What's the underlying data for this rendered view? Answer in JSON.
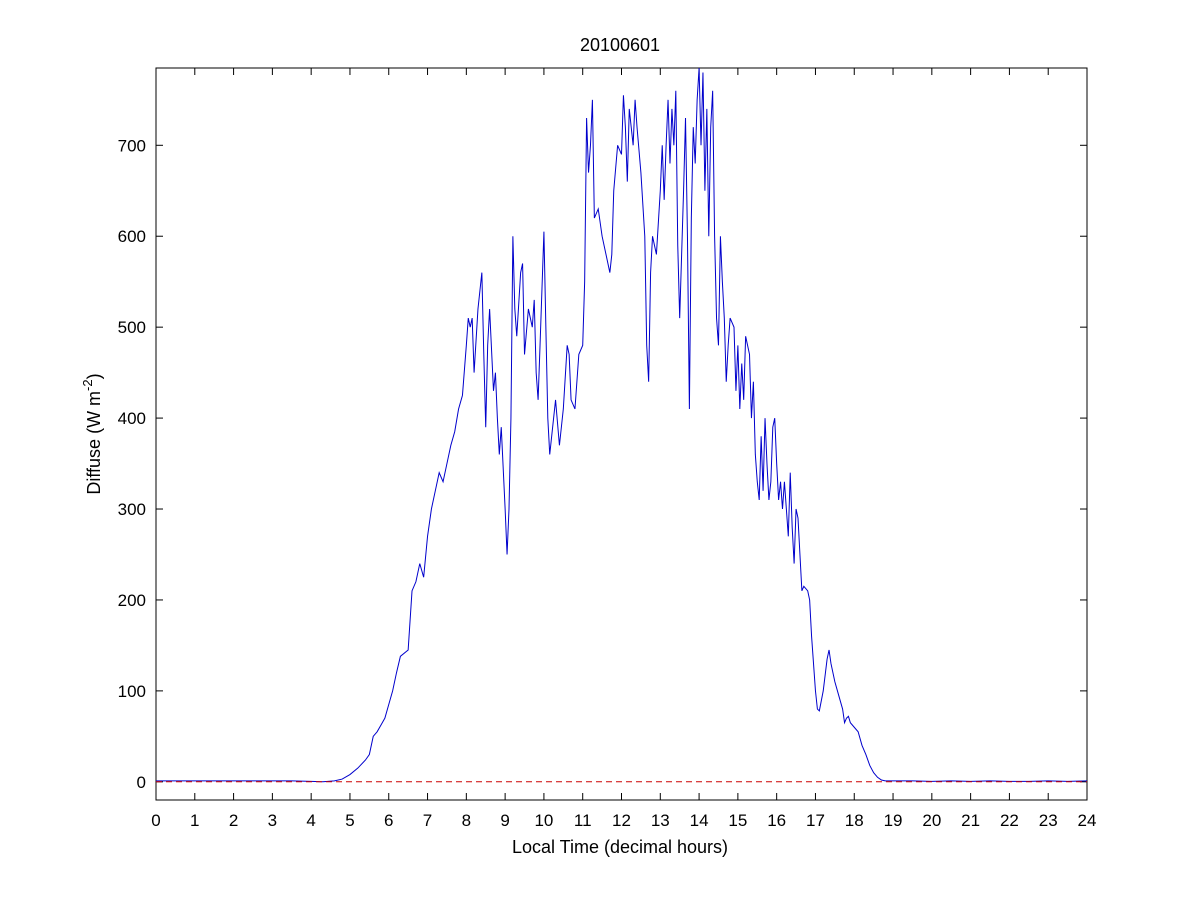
{
  "chart_data": {
    "type": "line",
    "title": "20100601",
    "xlabel": "Local Time (decimal hours)",
    "ylabel": {
      "prefix": "Diffuse (W m",
      "superscript": "-2",
      "suffix": ")"
    },
    "xlim": [
      0,
      24
    ],
    "ylim": [
      -20,
      785
    ],
    "xticks": [
      0,
      1,
      2,
      3,
      4,
      5,
      6,
      7,
      8,
      9,
      10,
      11,
      12,
      13,
      14,
      15,
      16,
      17,
      18,
      19,
      20,
      21,
      22,
      23,
      24
    ],
    "yticks": [
      0,
      100,
      200,
      300,
      400,
      500,
      600,
      700
    ],
    "grid": false,
    "legend": "none",
    "series": [
      {
        "color": "#0000cc",
        "line_style": "solid",
        "points": [
          [
            0,
            1
          ],
          [
            0.5,
            1
          ],
          [
            1,
            1
          ],
          [
            1.5,
            1
          ],
          [
            2,
            1
          ],
          [
            2.5,
            1
          ],
          [
            3,
            1
          ],
          [
            3.5,
            1
          ],
          [
            4,
            0.5
          ],
          [
            4.3,
            0
          ],
          [
            4.6,
            1
          ],
          [
            4.8,
            3
          ],
          [
            5.0,
            8
          ],
          [
            5.2,
            15
          ],
          [
            5.4,
            24
          ],
          [
            5.5,
            30
          ],
          [
            5.6,
            50
          ],
          [
            5.7,
            55
          ],
          [
            5.9,
            70
          ],
          [
            6.0,
            85
          ],
          [
            6.1,
            100
          ],
          [
            6.2,
            120
          ],
          [
            6.3,
            138
          ],
          [
            6.5,
            145
          ],
          [
            6.6,
            210
          ],
          [
            6.7,
            220
          ],
          [
            6.8,
            240
          ],
          [
            6.9,
            225
          ],
          [
            7.0,
            270
          ],
          [
            7.1,
            300
          ],
          [
            7.2,
            320
          ],
          [
            7.3,
            340
          ],
          [
            7.4,
            330
          ],
          [
            7.5,
            350
          ],
          [
            7.6,
            370
          ],
          [
            7.7,
            385
          ],
          [
            7.8,
            410
          ],
          [
            7.9,
            425
          ],
          [
            8.0,
            480
          ],
          [
            8.05,
            510
          ],
          [
            8.1,
            500
          ],
          [
            8.15,
            510
          ],
          [
            8.2,
            450
          ],
          [
            8.3,
            520
          ],
          [
            8.4,
            560
          ],
          [
            8.45,
            470
          ],
          [
            8.5,
            390
          ],
          [
            8.55,
            480
          ],
          [
            8.6,
            520
          ],
          [
            8.7,
            430
          ],
          [
            8.75,
            450
          ],
          [
            8.8,
            400
          ],
          [
            8.85,
            360
          ],
          [
            8.9,
            390
          ],
          [
            9.0,
            300
          ],
          [
            9.05,
            250
          ],
          [
            9.1,
            300
          ],
          [
            9.15,
            400
          ],
          [
            9.2,
            600
          ],
          [
            9.25,
            520
          ],
          [
            9.3,
            490
          ],
          [
            9.4,
            560
          ],
          [
            9.45,
            570
          ],
          [
            9.5,
            470
          ],
          [
            9.6,
            520
          ],
          [
            9.7,
            500
          ],
          [
            9.75,
            530
          ],
          [
            9.8,
            450
          ],
          [
            9.85,
            420
          ],
          [
            9.9,
            480
          ],
          [
            10.0,
            605
          ],
          [
            10.05,
            500
          ],
          [
            10.1,
            400
          ],
          [
            10.15,
            360
          ],
          [
            10.2,
            380
          ],
          [
            10.3,
            420
          ],
          [
            10.4,
            370
          ],
          [
            10.5,
            410
          ],
          [
            10.6,
            480
          ],
          [
            10.65,
            470
          ],
          [
            10.7,
            420
          ],
          [
            10.8,
            410
          ],
          [
            10.9,
            470
          ],
          [
            11.0,
            480
          ],
          [
            11.05,
            550
          ],
          [
            11.1,
            730
          ],
          [
            11.15,
            670
          ],
          [
            11.2,
            700
          ],
          [
            11.25,
            750
          ],
          [
            11.3,
            620
          ],
          [
            11.4,
            630
          ],
          [
            11.5,
            600
          ],
          [
            11.6,
            580
          ],
          [
            11.7,
            560
          ],
          [
            11.75,
            580
          ],
          [
            11.8,
            650
          ],
          [
            11.9,
            700
          ],
          [
            12.0,
            690
          ],
          [
            12.05,
            755
          ],
          [
            12.1,
            720
          ],
          [
            12.15,
            660
          ],
          [
            12.2,
            740
          ],
          [
            12.3,
            700
          ],
          [
            12.35,
            750
          ],
          [
            12.4,
            720
          ],
          [
            12.5,
            670
          ],
          [
            12.6,
            600
          ],
          [
            12.65,
            480
          ],
          [
            12.7,
            440
          ],
          [
            12.75,
            560
          ],
          [
            12.8,
            600
          ],
          [
            12.9,
            580
          ],
          [
            13.0,
            650
          ],
          [
            13.05,
            700
          ],
          [
            13.1,
            640
          ],
          [
            13.15,
            700
          ],
          [
            13.2,
            750
          ],
          [
            13.25,
            680
          ],
          [
            13.3,
            740
          ],
          [
            13.35,
            700
          ],
          [
            13.4,
            760
          ],
          [
            13.45,
            590
          ],
          [
            13.5,
            510
          ],
          [
            13.6,
            650
          ],
          [
            13.65,
            730
          ],
          [
            13.7,
            600
          ],
          [
            13.75,
            410
          ],
          [
            13.8,
            620
          ],
          [
            13.85,
            720
          ],
          [
            13.9,
            680
          ],
          [
            13.95,
            750
          ],
          [
            14.0,
            785
          ],
          [
            14.05,
            700
          ],
          [
            14.1,
            780
          ],
          [
            14.15,
            650
          ],
          [
            14.2,
            740
          ],
          [
            14.25,
            600
          ],
          [
            14.3,
            720
          ],
          [
            14.35,
            760
          ],
          [
            14.4,
            600
          ],
          [
            14.45,
            510
          ],
          [
            14.5,
            480
          ],
          [
            14.55,
            600
          ],
          [
            14.6,
            550
          ],
          [
            14.65,
            510
          ],
          [
            14.7,
            440
          ],
          [
            14.75,
            480
          ],
          [
            14.8,
            510
          ],
          [
            14.9,
            500
          ],
          [
            14.95,
            430
          ],
          [
            15.0,
            480
          ],
          [
            15.05,
            410
          ],
          [
            15.1,
            460
          ],
          [
            15.15,
            420
          ],
          [
            15.2,
            490
          ],
          [
            15.3,
            470
          ],
          [
            15.35,
            400
          ],
          [
            15.4,
            440
          ],
          [
            15.45,
            360
          ],
          [
            15.5,
            330
          ],
          [
            15.55,
            310
          ],
          [
            15.6,
            380
          ],
          [
            15.65,
            320
          ],
          [
            15.7,
            400
          ],
          [
            15.75,
            350
          ],
          [
            15.8,
            310
          ],
          [
            15.85,
            330
          ],
          [
            15.9,
            390
          ],
          [
            15.95,
            400
          ],
          [
            16.0,
            350
          ],
          [
            16.05,
            310
          ],
          [
            16.1,
            330
          ],
          [
            16.15,
            300
          ],
          [
            16.2,
            330
          ],
          [
            16.25,
            300
          ],
          [
            16.3,
            270
          ],
          [
            16.35,
            340
          ],
          [
            16.4,
            280
          ],
          [
            16.45,
            240
          ],
          [
            16.5,
            300
          ],
          [
            16.55,
            290
          ],
          [
            16.6,
            250
          ],
          [
            16.65,
            210
          ],
          [
            16.7,
            215
          ],
          [
            16.8,
            210
          ],
          [
            16.85,
            200
          ],
          [
            16.9,
            160
          ],
          [
            17.0,
            100
          ],
          [
            17.05,
            80
          ],
          [
            17.1,
            78
          ],
          [
            17.2,
            100
          ],
          [
            17.3,
            135
          ],
          [
            17.35,
            145
          ],
          [
            17.4,
            130
          ],
          [
            17.5,
            110
          ],
          [
            17.6,
            95
          ],
          [
            17.7,
            80
          ],
          [
            17.75,
            65
          ],
          [
            17.8,
            70
          ],
          [
            17.85,
            72
          ],
          [
            17.9,
            65
          ],
          [
            18.0,
            60
          ],
          [
            18.1,
            55
          ],
          [
            18.2,
            40
          ],
          [
            18.3,
            30
          ],
          [
            18.4,
            18
          ],
          [
            18.5,
            10
          ],
          [
            18.6,
            5
          ],
          [
            18.7,
            2
          ],
          [
            18.8,
            1
          ],
          [
            19.0,
            1
          ],
          [
            19.5,
            1
          ],
          [
            20.0,
            0.5
          ],
          [
            20.5,
            1
          ],
          [
            21.0,
            0.5
          ],
          [
            21.5,
            1
          ],
          [
            22.0,
            0.5
          ],
          [
            22.5,
            0.5
          ],
          [
            23.0,
            1
          ],
          [
            23.5,
            0.5
          ],
          [
            24.0,
            1
          ]
        ]
      },
      {
        "color": "#cc0000",
        "line_style": "dashed",
        "points": [
          [
            0,
            0
          ],
          [
            24,
            0
          ]
        ]
      }
    ]
  }
}
